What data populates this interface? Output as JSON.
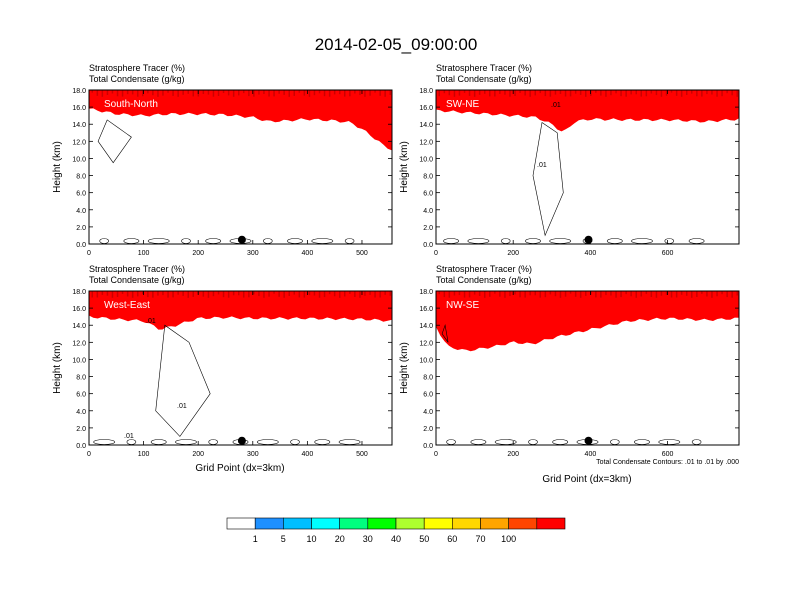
{
  "title": "2014-02-05_09:00:00",
  "colorbar": {
    "colors": [
      "#ffffff",
      "#1e90ff",
      "#00bfff",
      "#00ffff",
      "#00ff7f",
      "#00ff00",
      "#adff2f",
      "#ffff00",
      "#ffd700",
      "#ffa500",
      "#ff4500",
      "#ff0000"
    ],
    "labels": [
      "1",
      "5",
      "10",
      "20",
      "30",
      "40",
      "50",
      "60",
      "70",
      "100"
    ]
  },
  "contour_note": "Total Condensate Contours: .01 to .01 by .000",
  "chart_data": [
    {
      "type": "heatmap",
      "title_lines": [
        "Stratosphere Tracer   (%)",
        "Total Condensate   (g/kg)"
      ],
      "panel_label": "South-North",
      "ylabel": "Height (km)",
      "xlabel": "",
      "xlim": [
        0,
        555
      ],
      "ylim": [
        0,
        18
      ],
      "xticks": [
        "0",
        "100",
        "200",
        "300",
        "400",
        "500"
      ],
      "yticks": [
        "0.0",
        "2.0",
        "4.0",
        "6.0",
        "8.0",
        "10.0",
        "12.0",
        "14.0",
        "16.0",
        "18.0"
      ],
      "marker_x": 280,
      "contour_labels": [],
      "tracer_profile": {
        "x": [
          0,
          50,
          100,
          150,
          200,
          250,
          300,
          330,
          360,
          400,
          450,
          480,
          510,
          540,
          555
        ],
        "base_height_km": [
          15.8,
          15.2,
          15.0,
          15.2,
          15.2,
          15.1,
          14.8,
          14.3,
          14.4,
          14.6,
          14.4,
          14.2,
          13.0,
          11.5,
          11.0
        ]
      }
    },
    {
      "type": "heatmap",
      "title_lines": [
        "Stratosphere Tracer   (%)",
        "Total Condensate   (g/kg)"
      ],
      "panel_label": "SW-NE",
      "ylabel": "Height (km)",
      "xlabel": "",
      "xlim": [
        0,
        785
      ],
      "ylim": [
        0,
        18
      ],
      "xticks": [
        "0",
        "200",
        "400",
        "600"
      ],
      "yticks": [
        "0.0",
        "2.0",
        "4.0",
        "6.0",
        "8.0",
        "10.0",
        "12.0",
        "14.0",
        "16.0",
        "18.0"
      ],
      "marker_x": 395,
      "contour_labels": [
        ".01",
        ".01"
      ],
      "tracer_profile": {
        "x": [
          0,
          100,
          200,
          260,
          300,
          330,
          360,
          400,
          500,
          600,
          700,
          785
        ],
        "base_height_km": [
          15.6,
          15.3,
          15.0,
          14.8,
          14.0,
          13.0,
          14.3,
          14.6,
          14.5,
          14.5,
          14.3,
          14.6
        ]
      }
    },
    {
      "type": "heatmap",
      "title_lines": [
        "Stratosphere Tracer   (%)",
        "Total Condensate   (g/kg)"
      ],
      "panel_label": "West-East",
      "ylabel": "Height (km)",
      "xlabel": "Grid Point (dx=3km)",
      "xlim": [
        0,
        555
      ],
      "ylim": [
        0,
        18
      ],
      "xticks": [
        "0",
        "100",
        "200",
        "300",
        "400",
        "500"
      ],
      "yticks": [
        "0.0",
        "2.0",
        "4.0",
        "6.0",
        "8.0",
        "10.0",
        "12.0",
        "14.0",
        "16.0",
        "18.0"
      ],
      "marker_x": 280,
      "contour_labels": [
        ".01",
        ".01",
        ".01"
      ],
      "tracer_profile": {
        "x": [
          0,
          50,
          100,
          130,
          160,
          200,
          250,
          300,
          400,
          500,
          555
        ],
        "base_height_km": [
          15.0,
          14.7,
          14.5,
          13.5,
          14.0,
          14.8,
          14.9,
          14.8,
          14.8,
          14.7,
          14.5
        ]
      }
    },
    {
      "type": "heatmap",
      "title_lines": [
        "Stratosphere Tracer   (%)",
        "Total Condensate   (g/kg)"
      ],
      "panel_label": "NW-SE",
      "ylabel": "Height (km)",
      "xlabel": "Grid Point (dx=3km)",
      "xlim": [
        0,
        785
      ],
      "ylim": [
        0,
        18
      ],
      "xticks": [
        "0",
        "200",
        "400",
        "600"
      ],
      "yticks": [
        "0.0",
        "2.0",
        "4.0",
        "6.0",
        "8.0",
        "10.0",
        "12.0",
        "14.0",
        "16.0",
        "18.0"
      ],
      "marker_x": 395,
      "contour_labels": [],
      "tracer_profile": {
        "x": [
          0,
          30,
          80,
          150,
          200,
          250,
          300,
          350,
          400,
          450,
          500,
          600,
          700,
          785
        ],
        "base_height_km": [
          13.8,
          11.5,
          11.0,
          11.5,
          12.0,
          11.8,
          12.5,
          13.0,
          13.5,
          14.0,
          14.5,
          14.8,
          14.6,
          14.8
        ]
      }
    }
  ]
}
